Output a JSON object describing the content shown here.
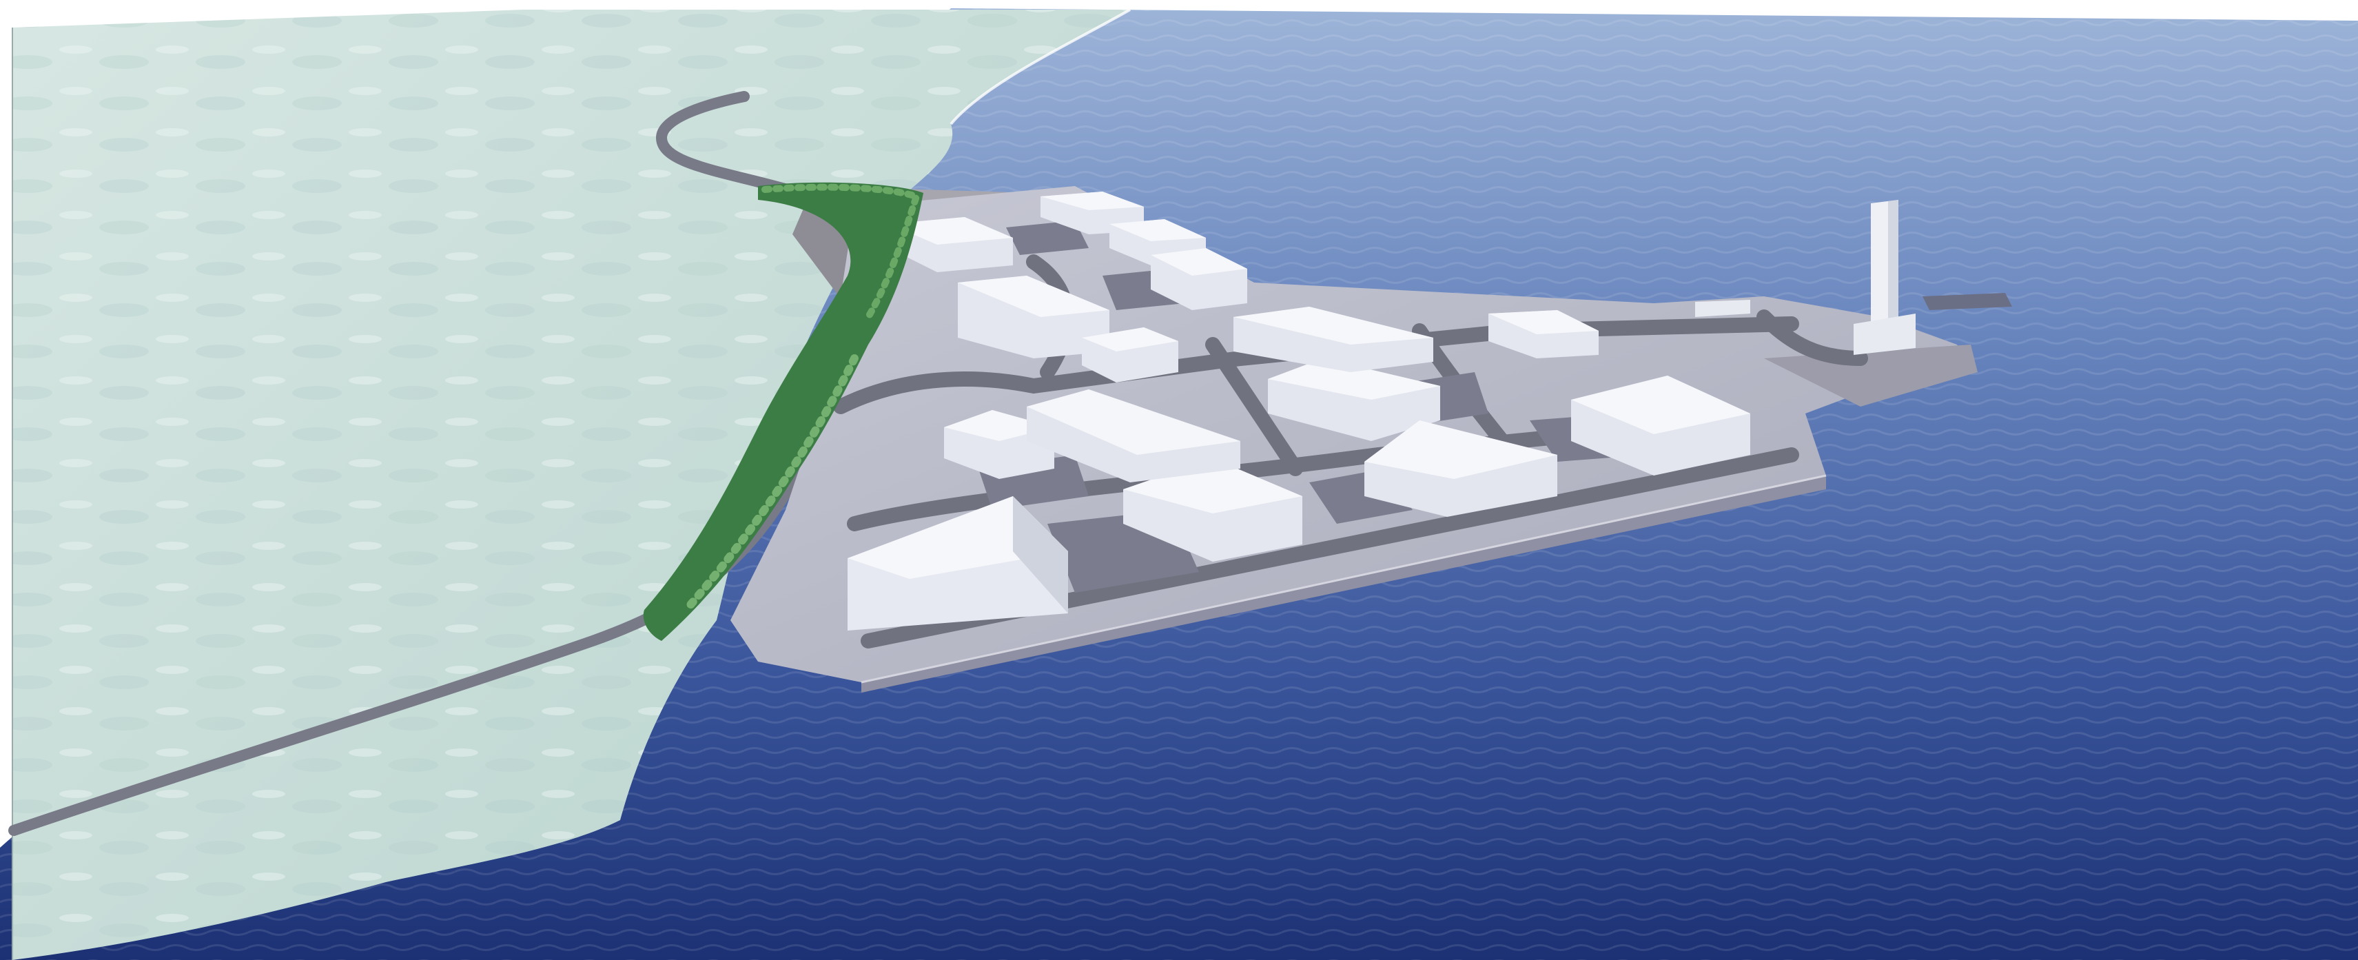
{
  "scene": {
    "kind": "3d-render",
    "subject": "aerial-industrial-harbour-concept",
    "colors": {
      "background": "#ffffff",
      "land_light": "#dfece8",
      "land_mid": "#c6dcd6",
      "land_dark": "#a9c6c3",
      "sea_far": "#8aa6cf",
      "sea_mid": "#4f6fae",
      "sea_near": "#1e3578",
      "platform": "#b9b9c7",
      "platform_shadow": "#8f90a3",
      "road": "#6f7182",
      "parking": "#7b7d8f",
      "building_top": "#f4f6fa",
      "building_side": "#e2e5ee",
      "building_shade": "#c9cdd9",
      "trees_light": "#5c9a5a",
      "trees_dark": "#2f6b3b",
      "cliff": "#8e8c94"
    },
    "elements": {
      "trees": "tree-belt",
      "tower": "tower",
      "pier": "pier",
      "road": "coastal-road"
    }
  }
}
